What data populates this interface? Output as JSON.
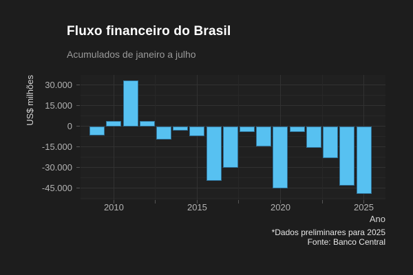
{
  "header": {
    "title": "Fluxo financeiro do Brasil",
    "subtitle": "Acumulados de janeiro a julho"
  },
  "footer": {
    "note": "*Dados preliminares para 2025",
    "source": "Fonte: Banco Central"
  },
  "chart_data": {
    "type": "bar",
    "title": "Fluxo financeiro do Brasil",
    "subtitle": "Acumulados de janeiro a julho",
    "xlabel": "Ano",
    "ylabel": "US$ milhões",
    "caption": [
      "*Dados preliminares para 2025",
      "Fonte: Banco Central"
    ],
    "categories": [
      2009,
      2010,
      2011,
      2012,
      2013,
      2014,
      2015,
      2016,
      2017,
      2018,
      2019,
      2020,
      2021,
      2022,
      2023,
      2024,
      2025
    ],
    "values": [
      -6800,
      3700,
      33200,
      3900,
      -9500,
      -3300,
      -7400,
      -39500,
      -30100,
      -4100,
      -14700,
      -45000,
      -4000,
      -15400,
      -23000,
      -43000,
      -49200
    ],
    "unit": "US$ milhões",
    "ylim": [
      -53600,
      37300
    ],
    "xlim": [
      2008.0,
      2026.3
    ],
    "y_major_ticks": [
      30000,
      15000,
      0,
      -15000,
      -30000,
      -45000
    ],
    "y_tick_labels": [
      "30.000",
      "15.000",
      "0",
      "-15.000",
      "-30.000",
      "-45.000"
    ],
    "y_minor_ticks": [
      22500,
      7500,
      -7500,
      -22500,
      -37500,
      -52500
    ],
    "x_major_ticks": [
      2010,
      2015,
      2020,
      2025
    ],
    "x_major_tick_labels": [
      "2010",
      "2015",
      "2020",
      "2025"
    ],
    "x_minor_ticks": [
      2012.5,
      2017.5,
      2022.5
    ],
    "grid": "on",
    "legend": "none",
    "bar_color": "#57c1f1",
    "bar_border_color": "#2e6f96",
    "background_color": "#1d1d1d"
  }
}
